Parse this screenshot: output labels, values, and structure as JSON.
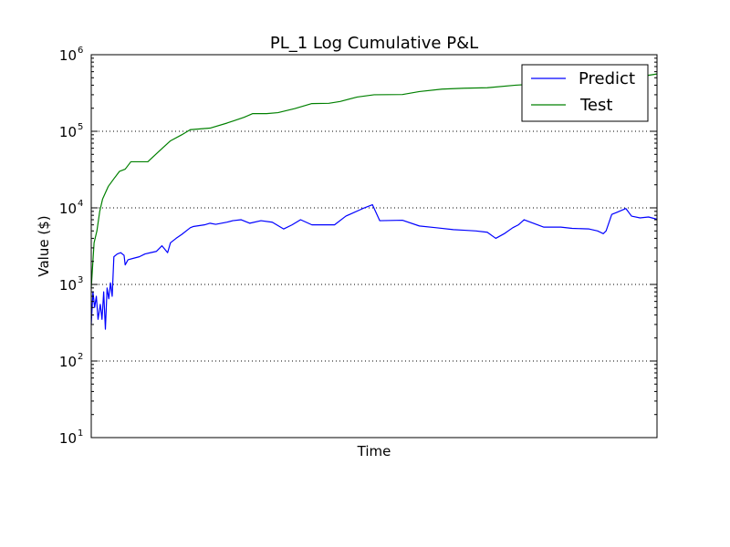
{
  "chart_data": {
    "type": "line",
    "title": "PL_1 Log Cumulative P&L",
    "xlabel": "Time",
    "ylabel": "Value ($)",
    "yscale": "log",
    "ylim": [
      10,
      1000000
    ],
    "xlim": [
      0,
      1
    ],
    "x_ticks_shown": false,
    "grid": "y-major-dotted",
    "legend_position": "top-right",
    "y_ticks": [
      {
        "base": "10",
        "exp": "1"
      },
      {
        "base": "10",
        "exp": "2"
      },
      {
        "base": "10",
        "exp": "3"
      },
      {
        "base": "10",
        "exp": "4"
      },
      {
        "base": "10",
        "exp": "5"
      },
      {
        "base": "10",
        "exp": "6"
      }
    ],
    "series": [
      {
        "name": "Predict",
        "color": "#0000ff",
        "points": [
          [
            0.0,
            300
          ],
          [
            0.003,
            800
          ],
          [
            0.006,
            500
          ],
          [
            0.009,
            700
          ],
          [
            0.012,
            350
          ],
          [
            0.016,
            550
          ],
          [
            0.019,
            350
          ],
          [
            0.022,
            800
          ],
          [
            0.025,
            260
          ],
          [
            0.028,
            900
          ],
          [
            0.031,
            650
          ],
          [
            0.034,
            1050
          ],
          [
            0.037,
            700
          ],
          [
            0.04,
            2300
          ],
          [
            0.046,
            2500
          ],
          [
            0.052,
            2600
          ],
          [
            0.058,
            2400
          ],
          [
            0.06,
            1800
          ],
          [
            0.065,
            2100
          ],
          [
            0.075,
            2200
          ],
          [
            0.085,
            2300
          ],
          [
            0.095,
            2500
          ],
          [
            0.105,
            2600
          ],
          [
            0.115,
            2700
          ],
          [
            0.125,
            3200
          ],
          [
            0.135,
            2600
          ],
          [
            0.14,
            3500
          ],
          [
            0.15,
            4000
          ],
          [
            0.16,
            4500
          ],
          [
            0.175,
            5500
          ],
          [
            0.18,
            5700
          ],
          [
            0.2,
            6000
          ],
          [
            0.21,
            6300
          ],
          [
            0.22,
            6100
          ],
          [
            0.24,
            6500
          ],
          [
            0.25,
            6800
          ],
          [
            0.265,
            7000
          ],
          [
            0.28,
            6300
          ],
          [
            0.3,
            6800
          ],
          [
            0.32,
            6500
          ],
          [
            0.34,
            5300
          ],
          [
            0.355,
            6000
          ],
          [
            0.37,
            7000
          ],
          [
            0.39,
            6000
          ],
          [
            0.43,
            6000
          ],
          [
            0.45,
            7800
          ],
          [
            0.48,
            9800
          ],
          [
            0.497,
            11000
          ],
          [
            0.51,
            6800
          ],
          [
            0.55,
            6900
          ],
          [
            0.58,
            5800
          ],
          [
            0.61,
            5500
          ],
          [
            0.64,
            5200
          ],
          [
            0.66,
            5100
          ],
          [
            0.68,
            5000
          ],
          [
            0.7,
            4800
          ],
          [
            0.715,
            4000
          ],
          [
            0.73,
            4600
          ],
          [
            0.745,
            5500
          ],
          [
            0.755,
            6000
          ],
          [
            0.765,
            7000
          ],
          [
            0.8,
            5600
          ],
          [
            0.83,
            5600
          ],
          [
            0.85,
            5400
          ],
          [
            0.88,
            5300
          ],
          [
            0.895,
            5000
          ],
          [
            0.905,
            4600
          ],
          [
            0.91,
            5000
          ],
          [
            0.92,
            8200
          ],
          [
            0.93,
            8800
          ],
          [
            0.945,
            9800
          ],
          [
            0.955,
            7800
          ],
          [
            0.97,
            7400
          ],
          [
            0.985,
            7600
          ],
          [
            1.0,
            7100
          ]
        ]
      },
      {
        "name": "Test",
        "color": "#008000",
        "points": [
          [
            0.0,
            900
          ],
          [
            0.005,
            3500
          ],
          [
            0.01,
            5000
          ],
          [
            0.015,
            9000
          ],
          [
            0.02,
            13000
          ],
          [
            0.03,
            19000
          ],
          [
            0.04,
            24000
          ],
          [
            0.05,
            30000
          ],
          [
            0.06,
            32000
          ],
          [
            0.07,
            40000
          ],
          [
            0.1,
            40000
          ],
          [
            0.12,
            55000
          ],
          [
            0.14,
            75000
          ],
          [
            0.16,
            90000
          ],
          [
            0.175,
            105000
          ],
          [
            0.21,
            110000
          ],
          [
            0.24,
            128000
          ],
          [
            0.27,
            152000
          ],
          [
            0.285,
            170000
          ],
          [
            0.31,
            170000
          ],
          [
            0.33,
            175000
          ],
          [
            0.36,
            198000
          ],
          [
            0.39,
            230000
          ],
          [
            0.42,
            232000
          ],
          [
            0.44,
            245000
          ],
          [
            0.47,
            280000
          ],
          [
            0.5,
            300000
          ],
          [
            0.55,
            302000
          ],
          [
            0.58,
            330000
          ],
          [
            0.62,
            355000
          ],
          [
            0.66,
            365000
          ],
          [
            0.7,
            370000
          ],
          [
            0.75,
            400000
          ],
          [
            0.8,
            420000
          ],
          [
            0.85,
            430000
          ],
          [
            0.9,
            450000
          ],
          [
            0.95,
            490000
          ],
          [
            1.0,
            560000
          ]
        ]
      }
    ]
  }
}
